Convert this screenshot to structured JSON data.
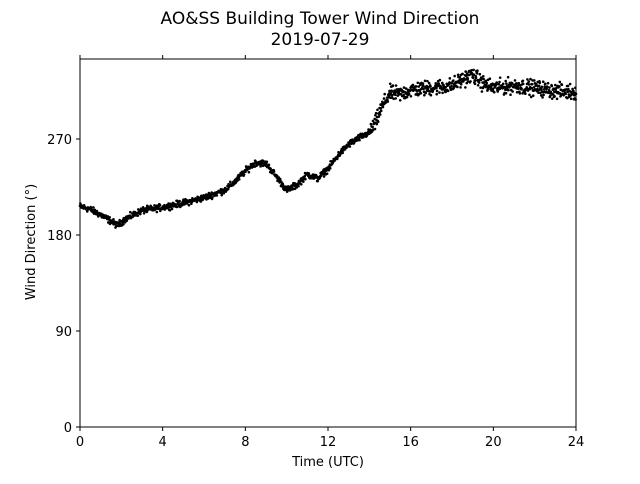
{
  "chart_data": {
    "type": "scatter",
    "title": "AO&SS Building Tower Wind Direction",
    "subtitle": "2019-07-29",
    "xlabel": "Time (UTC)",
    "ylabel": "Wind Direction (°)",
    "xlim": [
      0,
      24
    ],
    "ylim": [
      0,
      345
    ],
    "xticks": [
      0,
      4,
      8,
      12,
      16,
      20,
      24
    ],
    "yticks": [
      0,
      90,
      180,
      270
    ],
    "grid": false,
    "marker_color": "#000000",
    "trend": [
      [
        0.0,
        207
      ],
      [
        0.5,
        204
      ],
      [
        1.0,
        199
      ],
      [
        1.5,
        193
      ],
      [
        1.8,
        189
      ],
      [
        2.2,
        195
      ],
      [
        3.0,
        203
      ],
      [
        4.0,
        206
      ],
      [
        5.0,
        210
      ],
      [
        6.0,
        215
      ],
      [
        7.0,
        222
      ],
      [
        7.5,
        230
      ],
      [
        8.0,
        240
      ],
      [
        8.5,
        248
      ],
      [
        9.0,
        247
      ],
      [
        9.5,
        235
      ],
      [
        10.0,
        222
      ],
      [
        10.5,
        227
      ],
      [
        11.0,
        237
      ],
      [
        11.5,
        233
      ],
      [
        12.0,
        242
      ],
      [
        12.5,
        255
      ],
      [
        13.0,
        265
      ],
      [
        13.5,
        271
      ],
      [
        14.0,
        276
      ],
      [
        14.3,
        285
      ],
      [
        14.6,
        300
      ],
      [
        15.0,
        313
      ],
      [
        15.5,
        312
      ],
      [
        16.0,
        316
      ],
      [
        17.0,
        318
      ],
      [
        18.0,
        320
      ],
      [
        18.5,
        326
      ],
      [
        19.0,
        330
      ],
      [
        19.5,
        322
      ],
      [
        20.0,
        318
      ],
      [
        21.0,
        320
      ],
      [
        22.0,
        318
      ],
      [
        23.0,
        315
      ],
      [
        24.0,
        314
      ]
    ]
  }
}
